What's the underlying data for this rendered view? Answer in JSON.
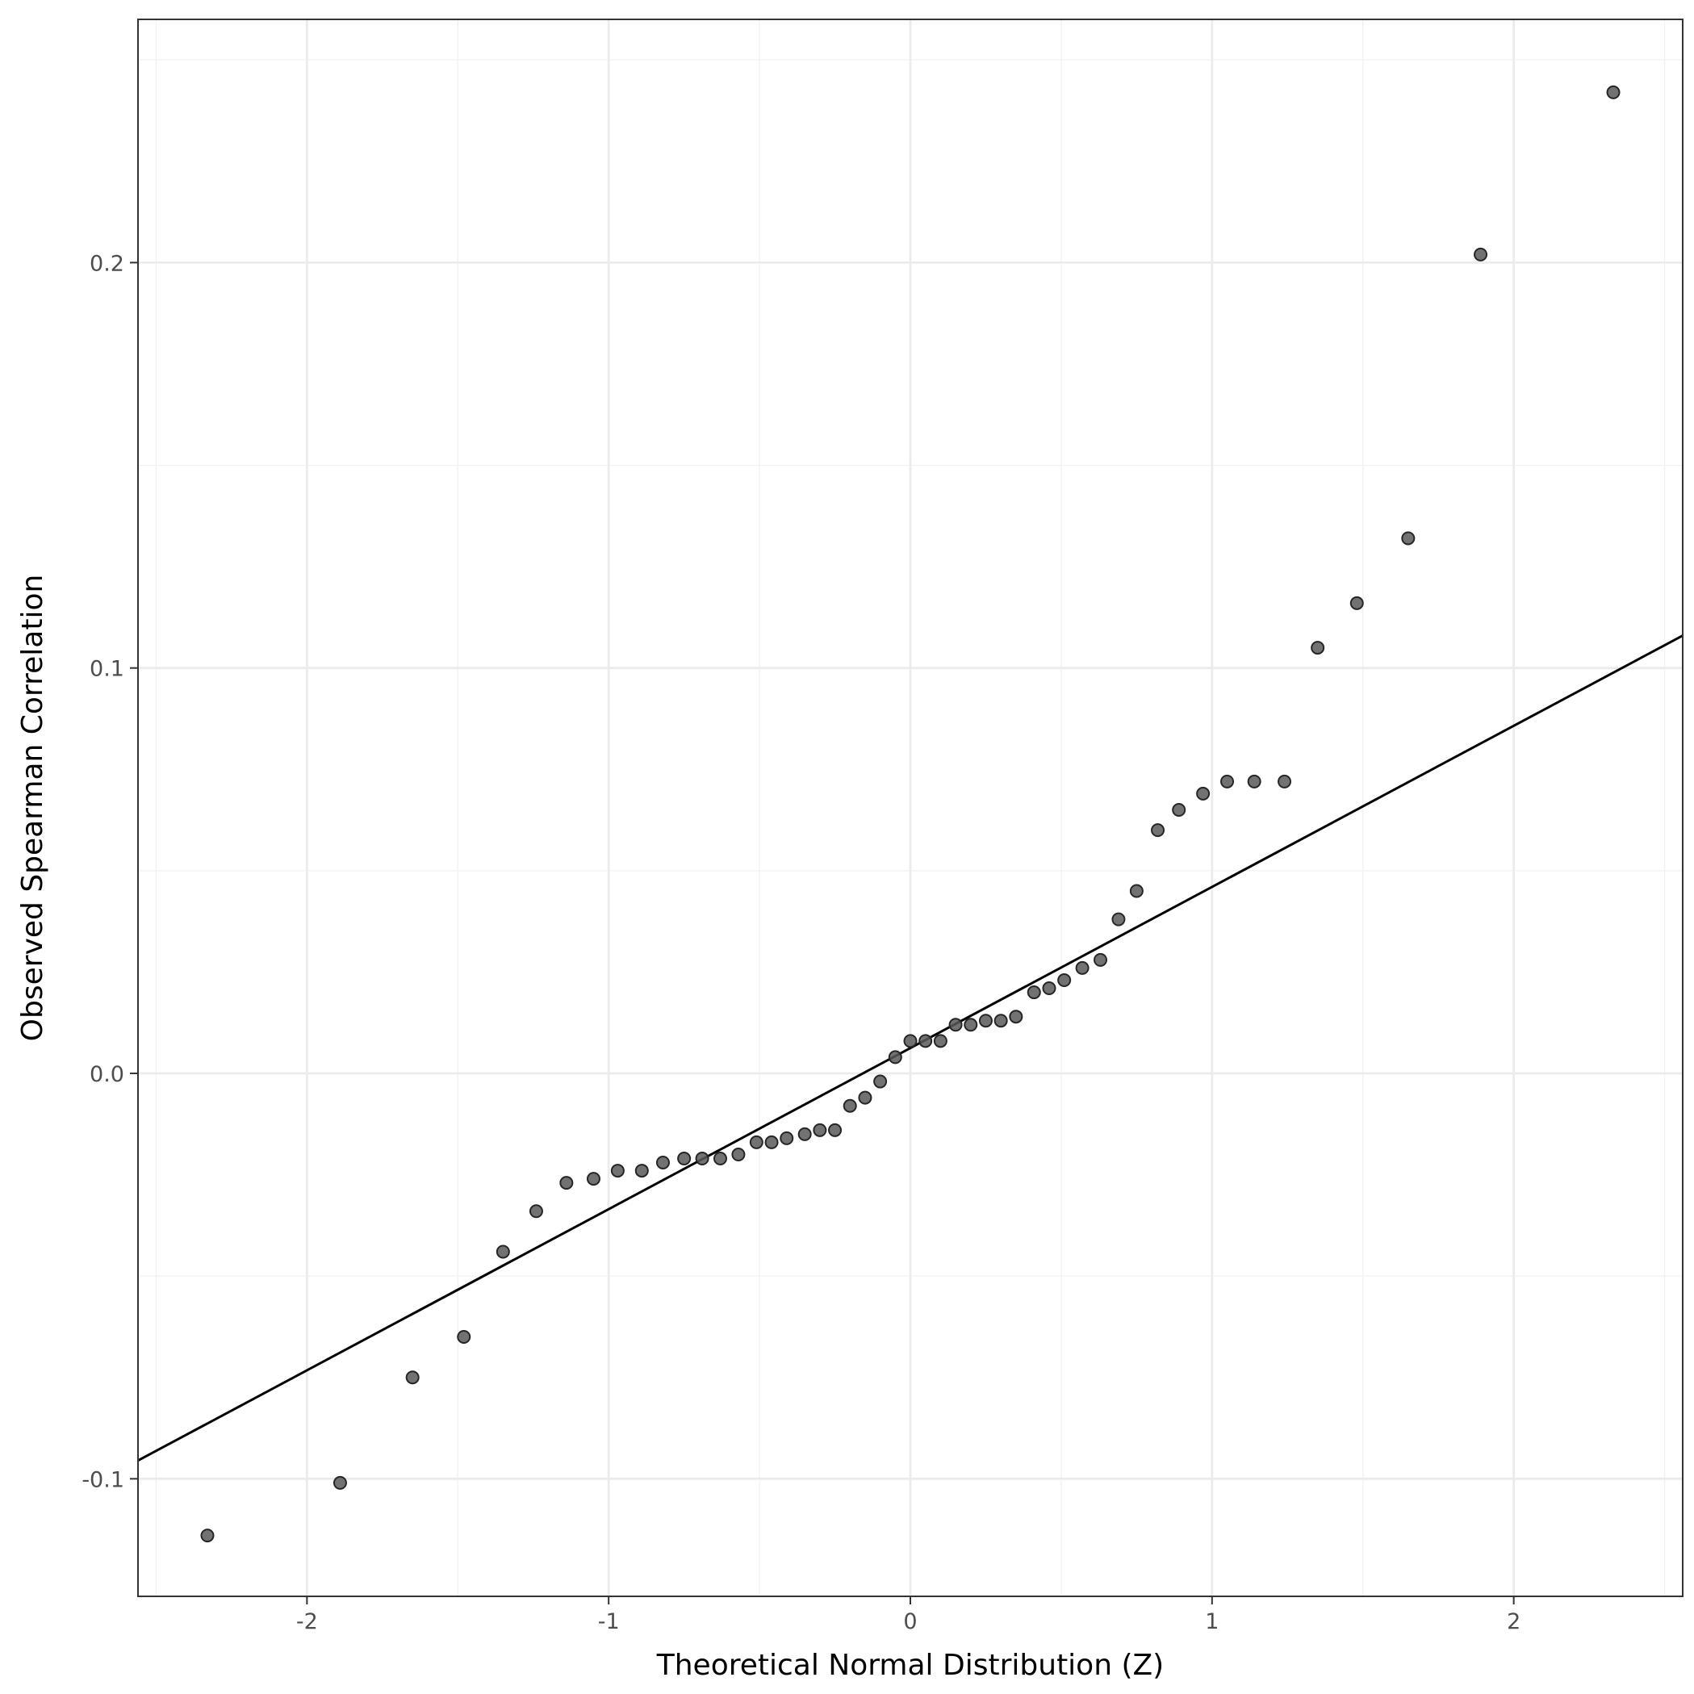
{
  "chart_data": {
    "type": "scatter",
    "title": "",
    "xlabel": "Theoretical Normal Distribution (Z)",
    "ylabel": "Observed Spearman Correlation",
    "xlim": [
      -2.56,
      2.56
    ],
    "ylim": [
      -0.129,
      0.26
    ],
    "x_ticks": [
      {
        "value": -2,
        "label": "-2"
      },
      {
        "value": -1,
        "label": "-1"
      },
      {
        "value": 0,
        "label": "0"
      },
      {
        "value": 1,
        "label": "1"
      },
      {
        "value": 2,
        "label": "2"
      }
    ],
    "y_ticks": [
      {
        "value": -0.1,
        "label": "-0.1"
      },
      {
        "value": 0.0,
        "label": "0.0"
      },
      {
        "value": 0.1,
        "label": "0.1"
      },
      {
        "value": 0.2,
        "label": "0.2"
      }
    ],
    "x_minor_ticks": [
      -2.5,
      -1.5,
      -0.5,
      0.5,
      1.5,
      2.5
    ],
    "y_minor_ticks": [
      -0.05,
      0.05,
      0.15,
      0.25
    ],
    "grid": true,
    "point_color": "#595959",
    "point_edge_color": "#262626",
    "line_color": "#000000",
    "reference_line": {
      "x": [
        -2.56,
        2.56
      ],
      "y": [
        -0.0955,
        0.108
      ]
    },
    "points": {
      "x": [
        -2.33,
        -1.89,
        -1.65,
        -1.48,
        -1.35,
        -1.24,
        -1.14,
        -1.05,
        -0.97,
        -0.89,
        -0.82,
        -0.75,
        -0.69,
        -0.63,
        -0.57,
        -0.51,
        -0.46,
        -0.41,
        -0.35,
        -0.3,
        -0.25,
        -0.2,
        -0.15,
        -0.1,
        -0.05,
        0.0,
        0.05,
        0.1,
        0.15,
        0.2,
        0.25,
        0.3,
        0.35,
        0.41,
        0.46,
        0.51,
        0.57,
        0.63,
        0.69,
        0.75,
        0.82,
        0.89,
        0.97,
        1.05,
        1.14,
        1.24,
        1.35,
        1.48,
        1.65,
        1.89,
        2.33
      ],
      "y": [
        -0.114,
        -0.101,
        -0.075,
        -0.065,
        -0.044,
        -0.034,
        -0.027,
        -0.026,
        -0.024,
        -0.024,
        -0.022,
        -0.021,
        -0.021,
        -0.021,
        -0.02,
        -0.017,
        -0.017,
        -0.016,
        -0.015,
        -0.014,
        -0.014,
        -0.008,
        -0.006,
        -0.002,
        0.004,
        0.008,
        0.008,
        0.008,
        0.012,
        0.012,
        0.013,
        0.013,
        0.014,
        0.02,
        0.021,
        0.023,
        0.026,
        0.028,
        0.038,
        0.045,
        0.06,
        0.065,
        0.069,
        0.072,
        0.072,
        0.072,
        0.105,
        0.116,
        0.132,
        0.202,
        0.242
      ]
    }
  }
}
